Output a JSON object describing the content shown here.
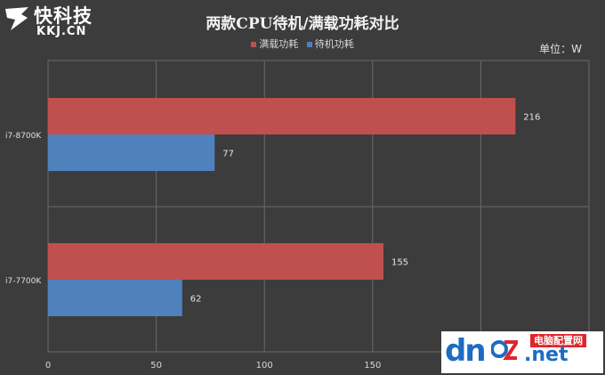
{
  "watermark_top": {
    "cn": "快科技",
    "en": "KKJ.CN"
  },
  "watermark_bottom": {
    "site": "dnpz.net",
    "tag": "电脑配置网"
  },
  "unit_label": "单位：W",
  "colors": {
    "full_load": "#c0504d",
    "idle": "#4f81bd",
    "background": "#3c3c3c",
    "grid": "#6a6a6a"
  },
  "chart_data": {
    "type": "bar",
    "orientation": "horizontal",
    "title": "两款CPU待机/满载功耗对比",
    "categories": [
      "i7-8700K",
      "i7-7700K"
    ],
    "series": [
      {
        "name": "满载功耗",
        "values": [
          216,
          155
        ]
      },
      {
        "name": "待机功耗",
        "values": [
          77,
          62
        ]
      }
    ],
    "x_ticks": [
      "0",
      "50",
      "100",
      "150"
    ],
    "xlim": [
      0,
      250
    ],
    "data_labels": true,
    "legend_position": "top",
    "grid": "vertical"
  }
}
